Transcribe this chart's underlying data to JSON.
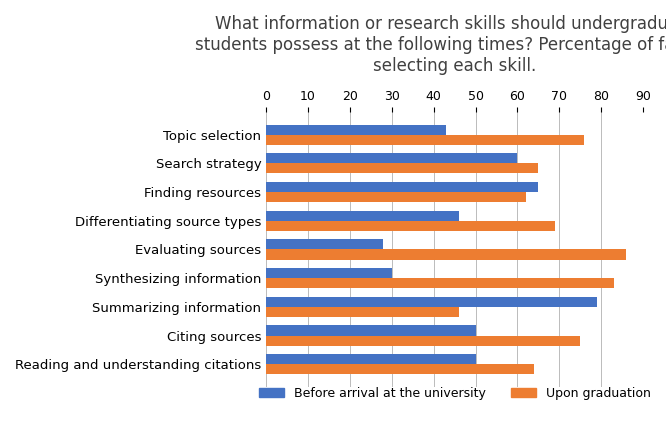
{
  "title": "What information or research skills should undergraduate\nstudents possess at the following times? Percentage of faculty\nselecting each skill.",
  "categories": [
    "Topic selection",
    "Search strategy",
    "Finding resources",
    "Differentiating source types",
    "Evaluating sources",
    "Synthesizing information",
    "Summarizing information",
    "Citing sources",
    "Reading and understanding citations"
  ],
  "before_arrival": [
    43,
    60,
    65,
    46,
    28,
    30,
    79,
    50,
    50
  ],
  "upon_graduation": [
    76,
    65,
    62,
    69,
    86,
    83,
    46,
    75,
    64
  ],
  "color_before": "#4472C4",
  "color_upon": "#ED7D31",
  "xlim": [
    0,
    90
  ],
  "xticks": [
    0,
    10,
    20,
    30,
    40,
    50,
    60,
    70,
    80,
    90
  ],
  "legend_before": "Before arrival at the university",
  "legend_upon": "Upon graduation",
  "bar_height": 0.35,
  "background_color": "#FFFFFF",
  "title_fontsize": 12,
  "tick_fontsize": 9,
  "label_fontsize": 9.5
}
